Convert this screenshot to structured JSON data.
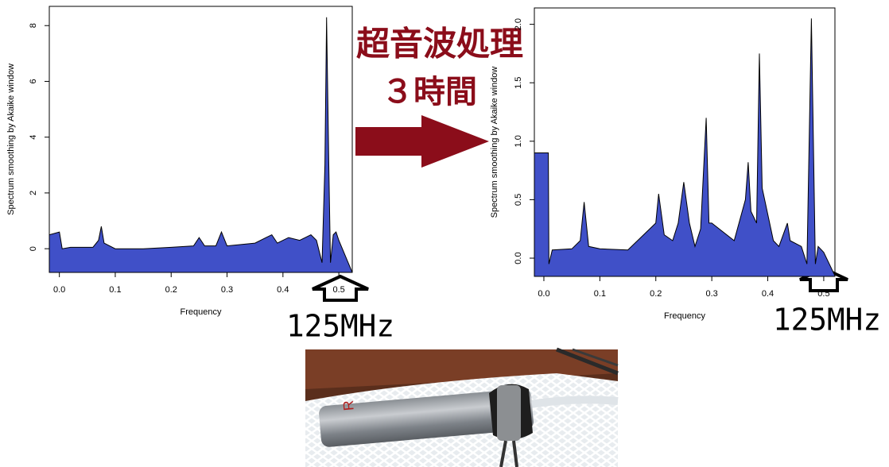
{
  "heading": "超音波処理",
  "subheading": "３時間",
  "chart_data": [
    {
      "type": "area",
      "x_label": "Frequency",
      "y_label": "Spectrum smoothing by  Akaike  window",
      "annotation": "125MHz",
      "fill_color": "#4050c8",
      "line_color": "#000000",
      "xlim": [
        -0.018,
        0.524
      ],
      "ylim": [
        -0.85,
        8.69
      ],
      "xticks": [
        {
          "value": 0,
          "label": "0.0"
        },
        0.1,
        0.2,
        0.3,
        0.4,
        0.5
      ],
      "yticks": [
        0,
        2,
        4,
        6,
        8
      ],
      "x": [
        -0.018,
        0,
        0.005,
        0.02,
        0.06,
        0.07,
        0.075,
        0.08,
        0.1,
        0.15,
        0.2,
        0.24,
        0.25,
        0.26,
        0.28,
        0.29,
        0.3,
        0.35,
        0.37,
        0.38,
        0.39,
        0.41,
        0.43,
        0.44,
        0.45,
        0.46,
        0.47,
        0.475,
        0.478,
        0.482,
        0.485,
        0.49,
        0.495,
        0.5,
        0.524
      ],
      "values": [
        0.5,
        0.6,
        0.0,
        0.05,
        0.05,
        0.3,
        0.8,
        0.2,
        0.0,
        0.0,
        0.05,
        0.1,
        0.4,
        0.1,
        0.1,
        0.6,
        0.1,
        0.2,
        0.4,
        0.5,
        0.2,
        0.4,
        0.3,
        0.4,
        0.5,
        0.3,
        -0.5,
        3,
        8.3,
        3,
        -0.5,
        0.5,
        0.6,
        0.3,
        -0.85
      ]
    },
    {
      "type": "area",
      "x_label": "Frequency",
      "y_label": "Spectrum smoothing by  Akaike  window",
      "annotation": "125MHz",
      "fill_color": "#4050c8",
      "line_color": "#000000",
      "xlim": [
        -0.017,
        0.52
      ],
      "ylim": [
        -0.156,
        2.14
      ],
      "xticks": [
        {
          "value": 0,
          "label": "0.0"
        },
        0.1,
        0.2,
        0.3,
        0.4,
        0.5
      ],
      "yticks": [
        {
          "value": 0,
          "label": "0.0"
        },
        0.5,
        {
          "value": 1,
          "label": "1.0"
        },
        1.5,
        {
          "value": 2,
          "label": "2.0"
        }
      ],
      "x": [
        -0.017,
        0,
        0.008,
        0.009,
        0.015,
        0.05,
        0.065,
        0.072,
        0.08,
        0.1,
        0.15,
        0.2,
        0.205,
        0.215,
        0.23,
        0.24,
        0.25,
        0.26,
        0.27,
        0.28,
        0.29,
        0.295,
        0.3,
        0.34,
        0.36,
        0.365,
        0.37,
        0.38,
        0.385,
        0.39,
        0.41,
        0.42,
        0.435,
        0.44,
        0.46,
        0.47,
        0.478,
        0.485,
        0.49,
        0.5,
        0.52
      ],
      "values": [
        0.9,
        0.9,
        0.9,
        -0.05,
        0.07,
        0.08,
        0.15,
        0.48,
        0.1,
        0.08,
        0.07,
        0.3,
        0.55,
        0.2,
        0.15,
        0.3,
        0.65,
        0.3,
        0.1,
        0.25,
        1.2,
        0.3,
        0.3,
        0.15,
        0.5,
        0.82,
        0.4,
        0.3,
        1.75,
        0.6,
        0.15,
        0.1,
        0.3,
        0.15,
        0.1,
        -0.05,
        2.05,
        -0.05,
        0.1,
        0.05,
        -0.15
      ]
    }
  ]
}
